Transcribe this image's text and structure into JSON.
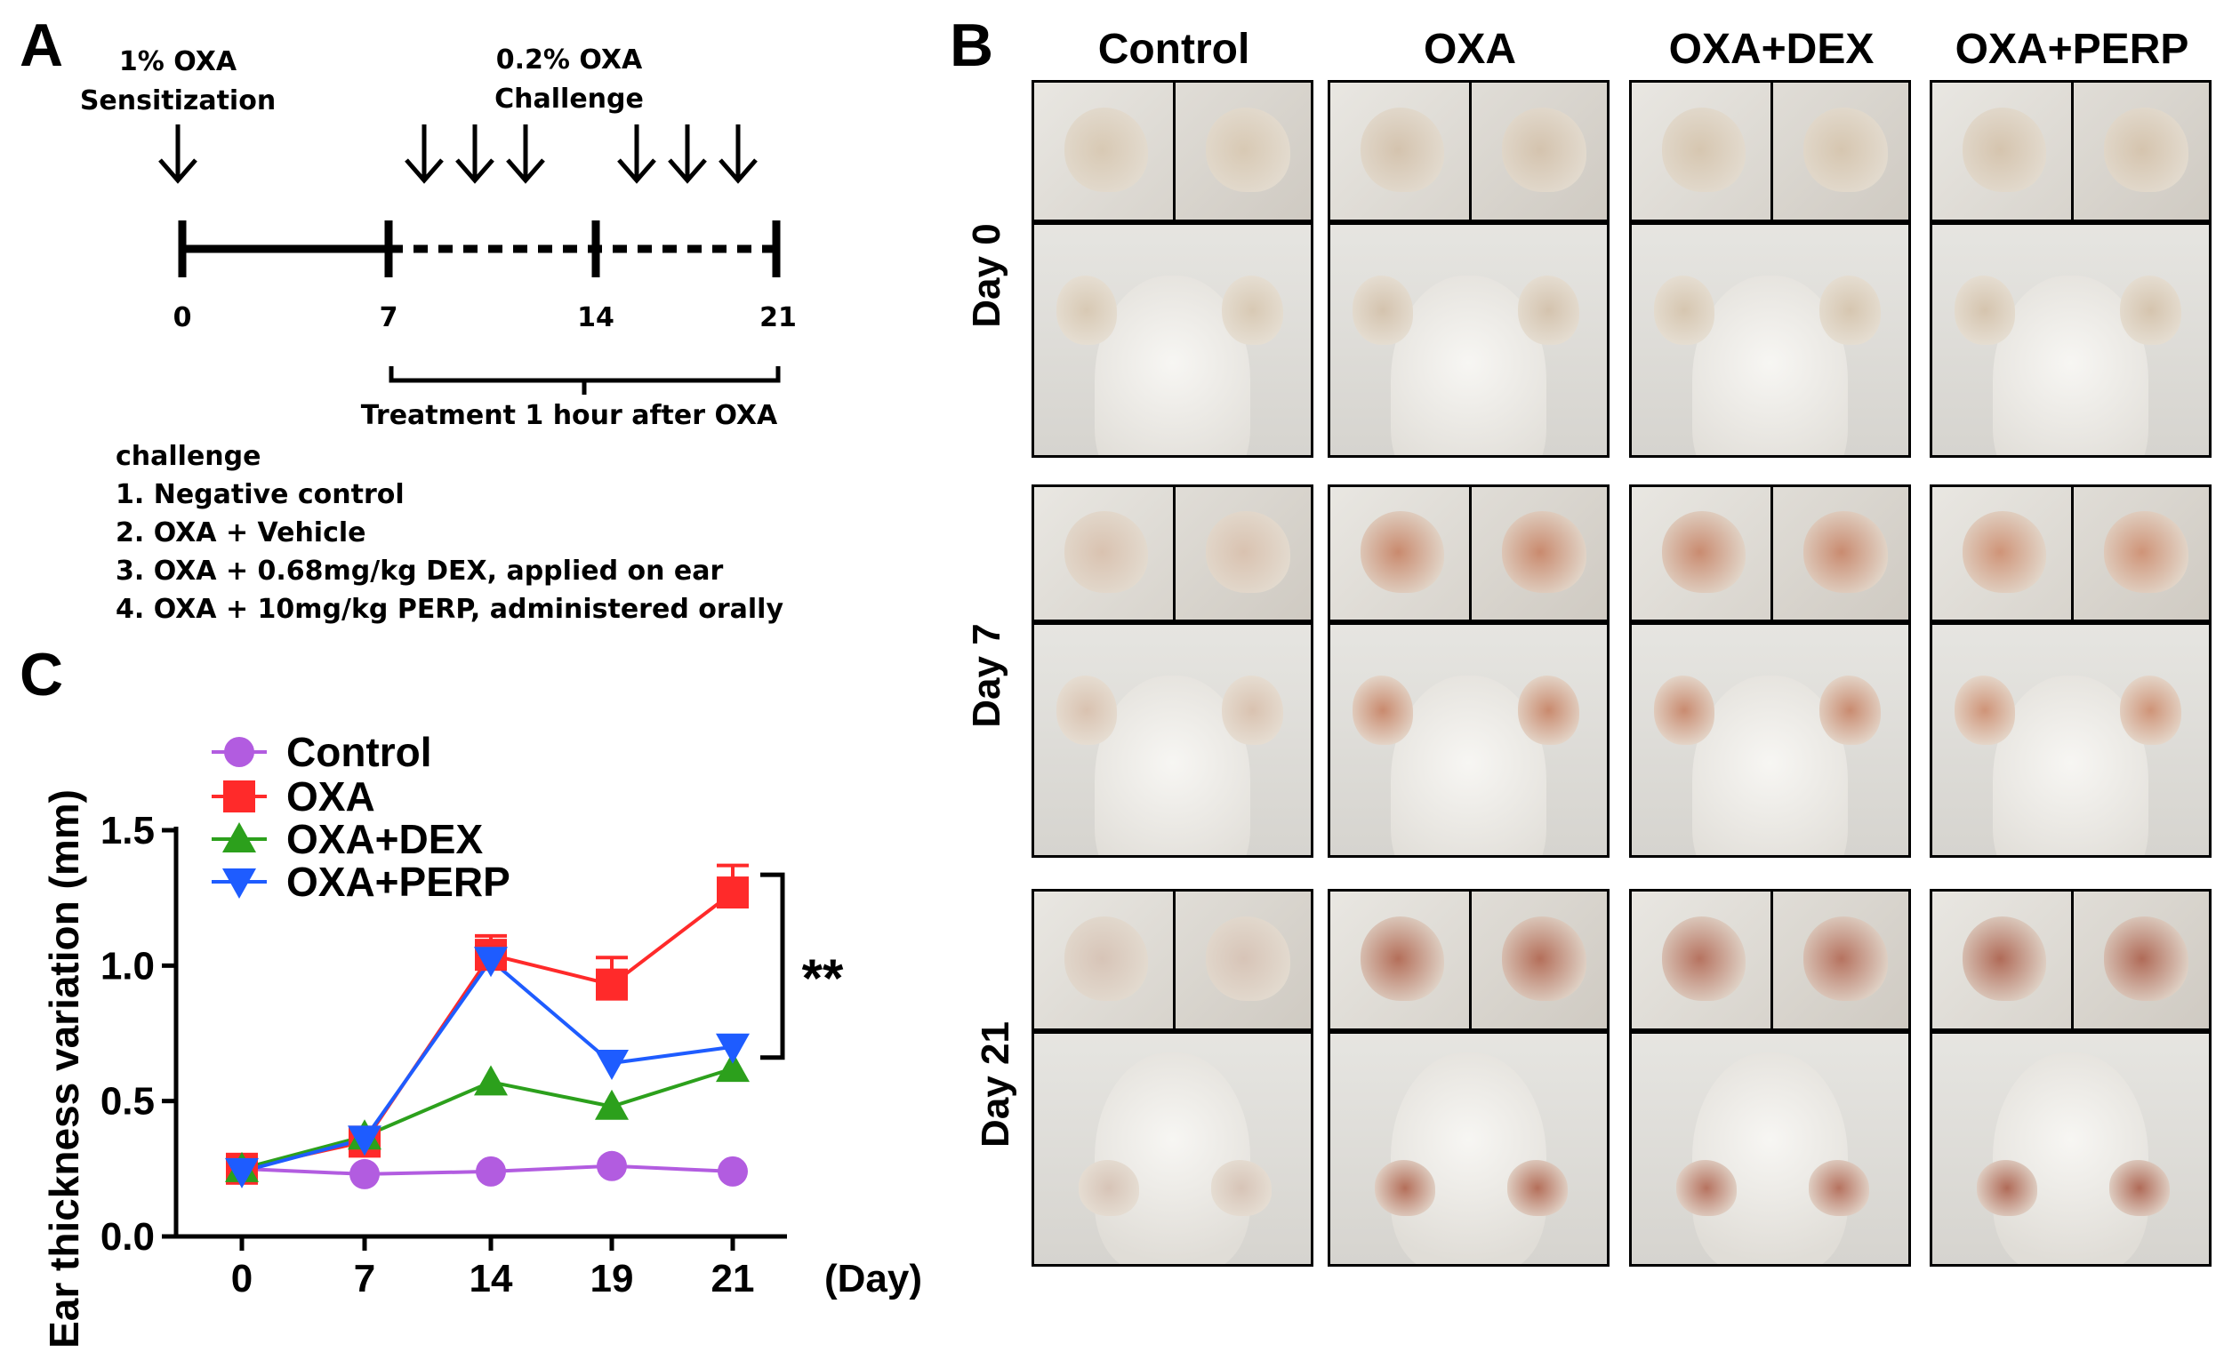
{
  "panel_a": {
    "letter": "A",
    "sensitization_label": "1% OXA",
    "sensitization_sub": "Sensitization",
    "challenge_label": "0.2% OXA",
    "challenge_sub": "Challenge",
    "ticks": [
      "0",
      "7",
      "14",
      "21"
    ],
    "treatment_note": "Treatment 1 hour after OXA",
    "treatment_heading": "challenge",
    "treatments": [
      "1. Negative control",
      "2. OXA + Vehicle",
      "3. OXA + 0.68mg/kg DEX, applied on ear",
      "4. OXA + 10mg/kg PERP, administered orally"
    ]
  },
  "panel_b": {
    "letter": "B",
    "columns": [
      "Control",
      "OXA",
      "OXA+DEX",
      "OXA+PERP"
    ],
    "rows": [
      "Day 0",
      "Day 7",
      "Day 21"
    ],
    "ear_colors": [
      [
        "#d8c9b4",
        "#d4c3ae",
        "#d6c6b0",
        "#d5c4ae"
      ],
      [
        "#d9c2b0",
        "#c98a6e",
        "#c98b70",
        "#cf9478"
      ],
      [
        "#d7c4b7",
        "#b46f5a",
        "#b67360",
        "#b06b58"
      ]
    ]
  },
  "panel_c": {
    "letter": "C",
    "significance": "**",
    "chart_data": {
      "type": "line",
      "title": "",
      "xlabel": "(Day)",
      "ylabel": "Ear thickness variation (mm)",
      "categories": [
        "0",
        "7",
        "14",
        "19",
        "21"
      ],
      "ylim": [
        0.0,
        1.5
      ],
      "yticks": [
        "0.0",
        "0.5",
        "1.0",
        "1.5"
      ],
      "legend_position": "top-left",
      "series": [
        {
          "name": "Control",
          "color": "#b25ce0",
          "marker": "circle",
          "values": [
            0.25,
            0.23,
            0.24,
            0.26,
            0.24
          ],
          "errors": [
            0,
            0,
            0,
            0,
            0
          ]
        },
        {
          "name": "OXA",
          "color": "#ff2a2a",
          "marker": "square",
          "values": [
            0.25,
            0.35,
            1.04,
            0.93,
            1.27
          ],
          "errors": [
            0,
            0,
            0.07,
            0.1,
            0.1
          ]
        },
        {
          "name": "OXA+DEX",
          "color": "#2ca01c",
          "marker": "triangle-up",
          "values": [
            0.25,
            0.37,
            0.57,
            0.48,
            0.62
          ],
          "errors": [
            0,
            0,
            0,
            0,
            0
          ]
        },
        {
          "name": "OXA+PERP",
          "color": "#1e5cff",
          "marker": "triangle-down",
          "values": [
            0.24,
            0.36,
            1.02,
            0.64,
            0.7
          ],
          "errors": [
            0,
            0,
            0,
            0,
            0
          ]
        }
      ]
    }
  }
}
